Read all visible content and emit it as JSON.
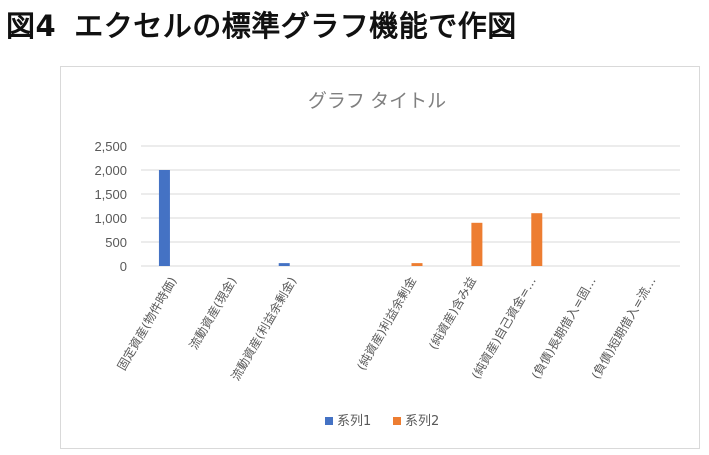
{
  "heading": {
    "fig_no": "図4",
    "title": "エクセルの標準グラフ機能で作図"
  },
  "chart_data": {
    "type": "bar",
    "title": "グラフ タイトル",
    "xlabel": "",
    "ylabel": "",
    "ylim": [
      0,
      2500
    ],
    "yticks": [
      "0",
      "500",
      "1,000",
      "1,500",
      "2,000",
      "2,500"
    ],
    "ytick_values": [
      0,
      500,
      1000,
      1500,
      2000,
      2500
    ],
    "grid": true,
    "legend": "bottom",
    "categories": [
      "固定資産(物件時価)",
      "流動資産(現金)",
      "流動資産(利益余剰金)",
      "",
      "(純資産)利益余剰金",
      "(純資産)含み益",
      "(純資産)自己資金=…",
      "(負債)長期借入=固…",
      "(負債)短期借入=流…"
    ],
    "series": [
      {
        "name": "系列1",
        "color": "#4472c4",
        "values": [
          2000,
          0,
          60,
          0,
          0,
          0,
          0,
          0,
          0
        ]
      },
      {
        "name": "系列2",
        "color": "#ed7d31",
        "values": [
          0,
          0,
          0,
          0,
          60,
          900,
          1100,
          0,
          0
        ]
      }
    ]
  }
}
